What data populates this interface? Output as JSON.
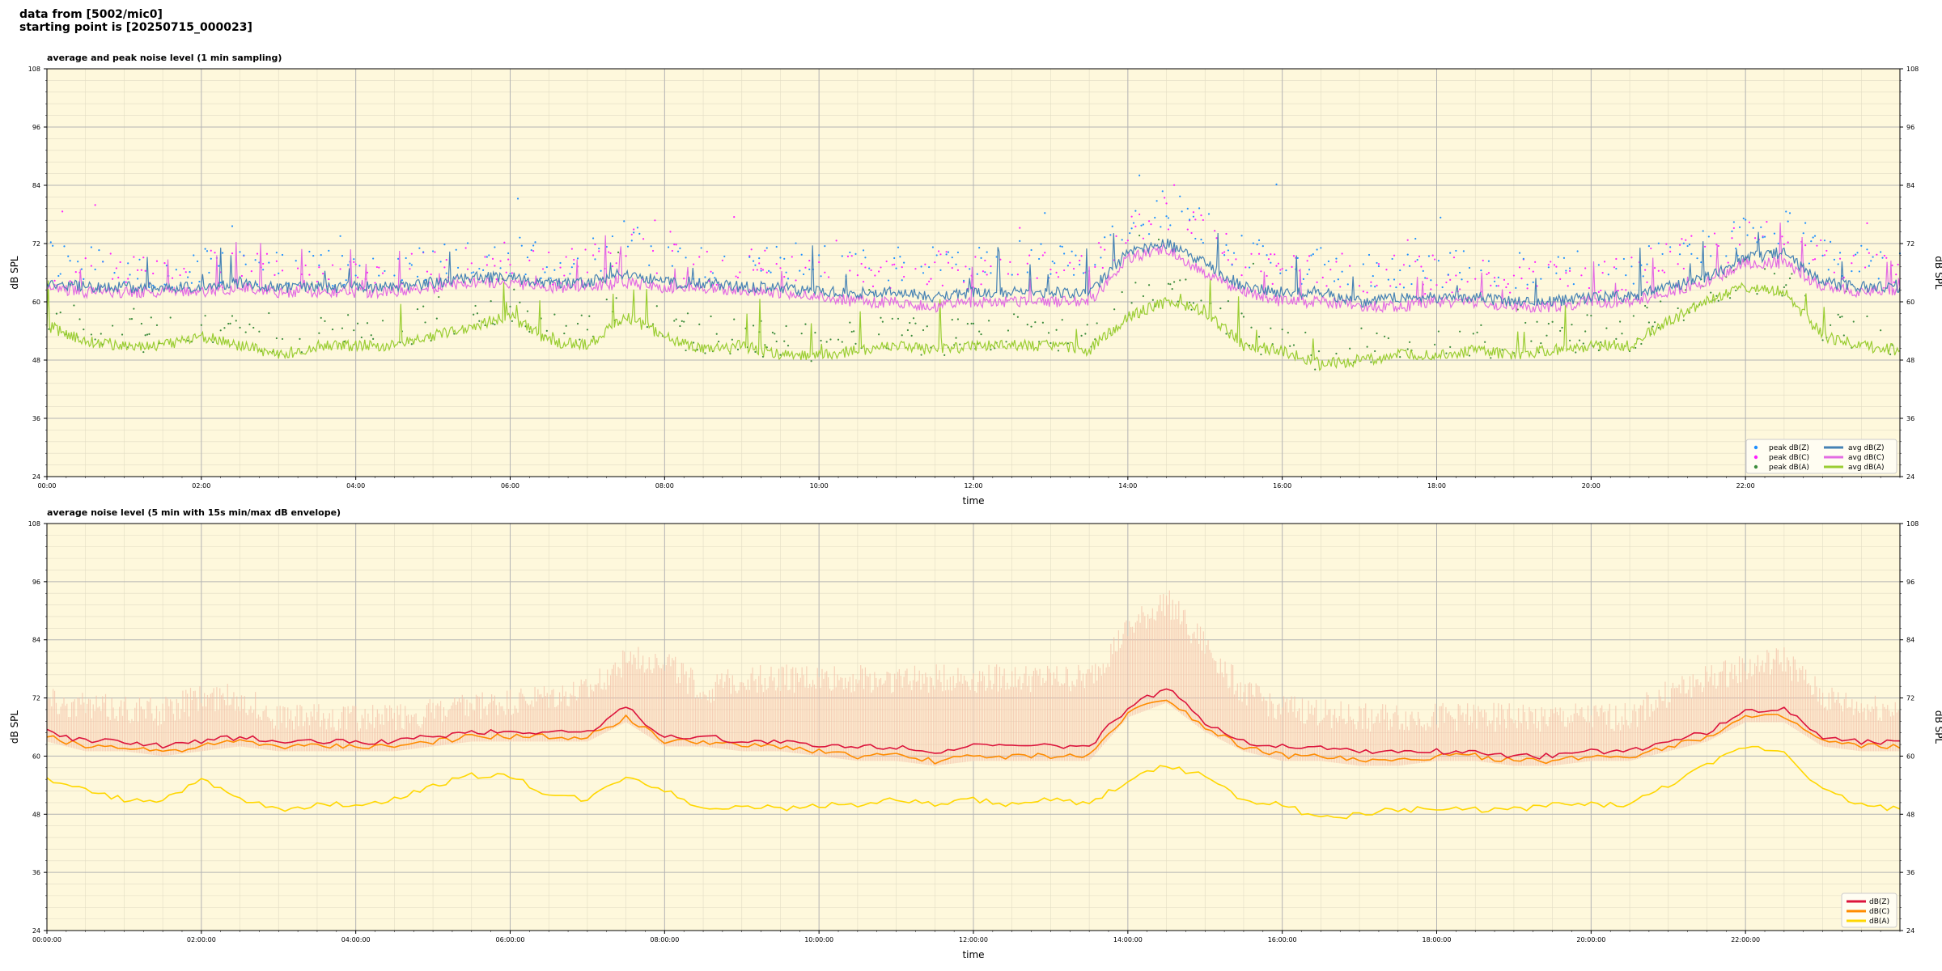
{
  "header": {
    "line1": "data from [5002/mic0]",
    "line2": "starting point is [20250715_000023]"
  },
  "colors": {
    "plot_bg": "#fef8dc",
    "grid_major": "#b4b4b4",
    "grid_minor": "#e2dcc4",
    "z": "#4682b4",
    "c": "#e36be3",
    "a": "#9acd32",
    "peak_z": "#1e90ff",
    "peak_c": "#ff1fff",
    "peak_a": "#3c8c3c",
    "top_z": "#dc143c",
    "top_c": "#ff8c00",
    "top_a": "#ffd700",
    "envelope": "#f4c0a8"
  },
  "chart_data": [
    {
      "type": "line",
      "title": "average and peak noise level (1 min sampling)",
      "xlabel": "time",
      "ylabel": "dB SPL",
      "xlim": [
        0,
        24
      ],
      "ylim": [
        24,
        108
      ],
      "yticks": [
        24,
        36,
        48,
        60,
        72,
        84,
        96,
        108
      ],
      "xtick_labels": [
        "00:00",
        "02:00",
        "04:00",
        "06:00",
        "08:00",
        "10:00",
        "12:00",
        "14:00",
        "16:00",
        "18:00",
        "20:00",
        "22:00"
      ],
      "grid": true,
      "legend_position": "bottom-right",
      "legend": [
        "peak dB(Z)",
        "peak dB(C)",
        "peak dB(A)",
        "avg dB(Z)",
        "avg dB(C)",
        "avg dB(A)"
      ],
      "x_hours": [
        0,
        0.5,
        1,
        1.5,
        2,
        2.5,
        3,
        3.5,
        4,
        4.5,
        5,
        5.5,
        6,
        6.5,
        7,
        7.5,
        8,
        8.5,
        9,
        9.5,
        10,
        10.5,
        11,
        11.5,
        12,
        12.5,
        13,
        13.5,
        14,
        14.5,
        15,
        15.5,
        16,
        16.5,
        17,
        17.5,
        18,
        18.5,
        19,
        19.5,
        20,
        20.5,
        21,
        21.5,
        22,
        22.5,
        23,
        23.5,
        24
      ],
      "series": [
        {
          "name": "avg dB(Z)",
          "values": [
            64,
            63,
            63,
            63,
            63,
            64,
            63,
            63,
            63,
            63,
            64,
            65,
            65,
            64,
            64,
            66,
            64,
            64,
            63,
            63,
            62,
            62,
            62,
            61,
            62,
            62,
            62,
            62,
            70,
            72,
            68,
            63,
            62,
            62,
            60,
            61,
            61,
            61,
            60,
            60,
            61,
            61,
            63,
            65,
            69,
            70,
            64,
            63,
            63
          ]
        },
        {
          "name": "avg dB(C)",
          "values": [
            63,
            62,
            62,
            62,
            62,
            63,
            62,
            62,
            62,
            62,
            63,
            64,
            64,
            63,
            63,
            64,
            63,
            63,
            62,
            62,
            61,
            60,
            60,
            59,
            60,
            60,
            60,
            60,
            69,
            71,
            66,
            62,
            60,
            60,
            59,
            59,
            60,
            60,
            59,
            59,
            60,
            60,
            62,
            64,
            68,
            68,
            63,
            62,
            62
          ]
        },
        {
          "name": "avg dB(A)",
          "values": [
            55,
            52,
            51,
            51,
            53,
            51,
            49,
            51,
            51,
            51,
            53,
            55,
            57,
            52,
            51,
            57,
            53,
            50,
            51,
            49,
            49,
            50,
            51,
            50,
            51,
            51,
            51,
            50,
            57,
            60,
            58,
            51,
            50,
            47,
            48,
            49,
            49,
            50,
            49,
            50,
            51,
            51,
            56,
            60,
            63,
            62,
            53,
            51,
            50
          ]
        },
        {
          "name": "peak dB(Z)",
          "values": [
            67,
            66,
            66,
            65,
            66,
            66,
            65,
            65,
            65,
            65,
            66,
            67,
            68,
            66,
            67,
            72,
            68,
            66,
            67,
            67,
            66,
            66,
            66,
            66,
            66,
            67,
            67,
            68,
            74,
            78,
            74,
            68,
            66,
            66,
            65,
            65,
            65,
            65,
            65,
            65,
            65,
            65,
            68,
            70,
            72,
            74,
            68,
            66,
            66
          ]
        },
        {
          "name": "peak dB(C)",
          "values": [
            66,
            65,
            65,
            64,
            65,
            65,
            64,
            64,
            64,
            64,
            65,
            66,
            67,
            65,
            66,
            70,
            67,
            65,
            66,
            66,
            65,
            65,
            65,
            65,
            65,
            66,
            66,
            67,
            73,
            77,
            73,
            67,
            65,
            65,
            64,
            64,
            64,
            64,
            64,
            64,
            64,
            64,
            67,
            69,
            71,
            73,
            67,
            65,
            65
          ]
        },
        {
          "name": "peak dB(A)",
          "values": [
            56,
            53,
            52,
            52,
            54,
            52,
            50,
            52,
            52,
            52,
            54,
            56,
            58,
            53,
            52,
            58,
            54,
            51,
            52,
            50,
            50,
            51,
            52,
            51,
            52,
            52,
            52,
            51,
            58,
            61,
            59,
            52,
            51,
            48,
            49,
            50,
            50,
            51,
            50,
            51,
            52,
            52,
            57,
            61,
            64,
            63,
            54,
            52,
            51
          ]
        }
      ]
    },
    {
      "type": "line",
      "title": "average noise level (5 min with 15s min/max dB envelope)",
      "xlabel": "time",
      "ylabel": "dB SPL",
      "xlim": [
        0,
        24
      ],
      "ylim": [
        24,
        108
      ],
      "yticks": [
        24,
        36,
        48,
        60,
        72,
        84,
        96,
        108
      ],
      "xtick_labels": [
        "00:00:00",
        "02:00:00",
        "04:00:00",
        "06:00:00",
        "08:00:00",
        "10:00:00",
        "12:00:00",
        "14:00:00",
        "16:00:00",
        "18:00:00",
        "20:00:00",
        "22:00:00"
      ],
      "grid": true,
      "legend_position": "bottom-right",
      "legend": [
        "dB(Z)",
        "dB(C)",
        "dB(A)"
      ],
      "x_hours": [
        0,
        0.5,
        1,
        1.5,
        2,
        2.5,
        3,
        3.5,
        4,
        4.5,
        5,
        5.5,
        6,
        6.5,
        7,
        7.5,
        8,
        8.5,
        9,
        9.5,
        10,
        10.5,
        11,
        11.5,
        12,
        12.5,
        13,
        13.5,
        14,
        14.5,
        15,
        15.5,
        16,
        16.5,
        17,
        17.5,
        18,
        18.5,
        19,
        19.5,
        20,
        20.5,
        21,
        21.5,
        22,
        22.5,
        23,
        23.5,
        24
      ],
      "series": [
        {
          "name": "dB(Z)",
          "values": [
            65,
            63,
            63,
            62,
            63,
            64,
            63,
            63,
            63,
            63,
            64,
            65,
            65,
            65,
            65,
            70,
            64,
            64,
            63,
            63,
            62,
            62,
            62,
            61,
            62,
            62,
            62,
            62,
            70,
            74,
            67,
            63,
            62,
            62,
            61,
            61,
            61,
            61,
            60,
            60,
            61,
            61,
            63,
            65,
            69,
            70,
            64,
            63,
            63
          ]
        },
        {
          "name": "dB(C)",
          "values": [
            64,
            62,
            62,
            61,
            62,
            63,
            62,
            62,
            62,
            62,
            63,
            64,
            64,
            64,
            64,
            68,
            63,
            63,
            62,
            62,
            61,
            60,
            60,
            59,
            60,
            60,
            60,
            60,
            69,
            72,
            66,
            62,
            60,
            60,
            59,
            59,
            60,
            60,
            59,
            59,
            60,
            60,
            62,
            64,
            68,
            68,
            63,
            62,
            62
          ]
        },
        {
          "name": "dB(A)",
          "values": [
            55,
            53,
            51,
            51,
            55,
            51,
            49,
            50,
            50,
            51,
            54,
            56,
            56,
            52,
            51,
            56,
            53,
            49,
            50,
            49,
            50,
            50,
            51,
            50,
            51,
            50,
            51,
            50,
            55,
            58,
            56,
            51,
            50,
            47,
            48,
            49,
            49,
            49,
            49,
            50,
            50,
            50,
            54,
            58,
            62,
            61,
            53,
            50,
            49
          ]
        },
        {
          "name": "envelope max",
          "values": [
            72,
            70,
            70,
            69,
            72,
            72,
            68,
            68,
            68,
            68,
            69,
            70,
            71,
            72,
            73,
            80,
            80,
            73,
            76,
            76,
            76,
            76,
            76,
            76,
            76,
            76,
            76,
            76,
            86,
            92,
            83,
            73,
            70,
            69,
            68,
            68,
            68,
            68,
            68,
            68,
            68,
            68,
            73,
            76,
            78,
            80,
            72,
            70,
            70
          ]
        }
      ]
    }
  ]
}
